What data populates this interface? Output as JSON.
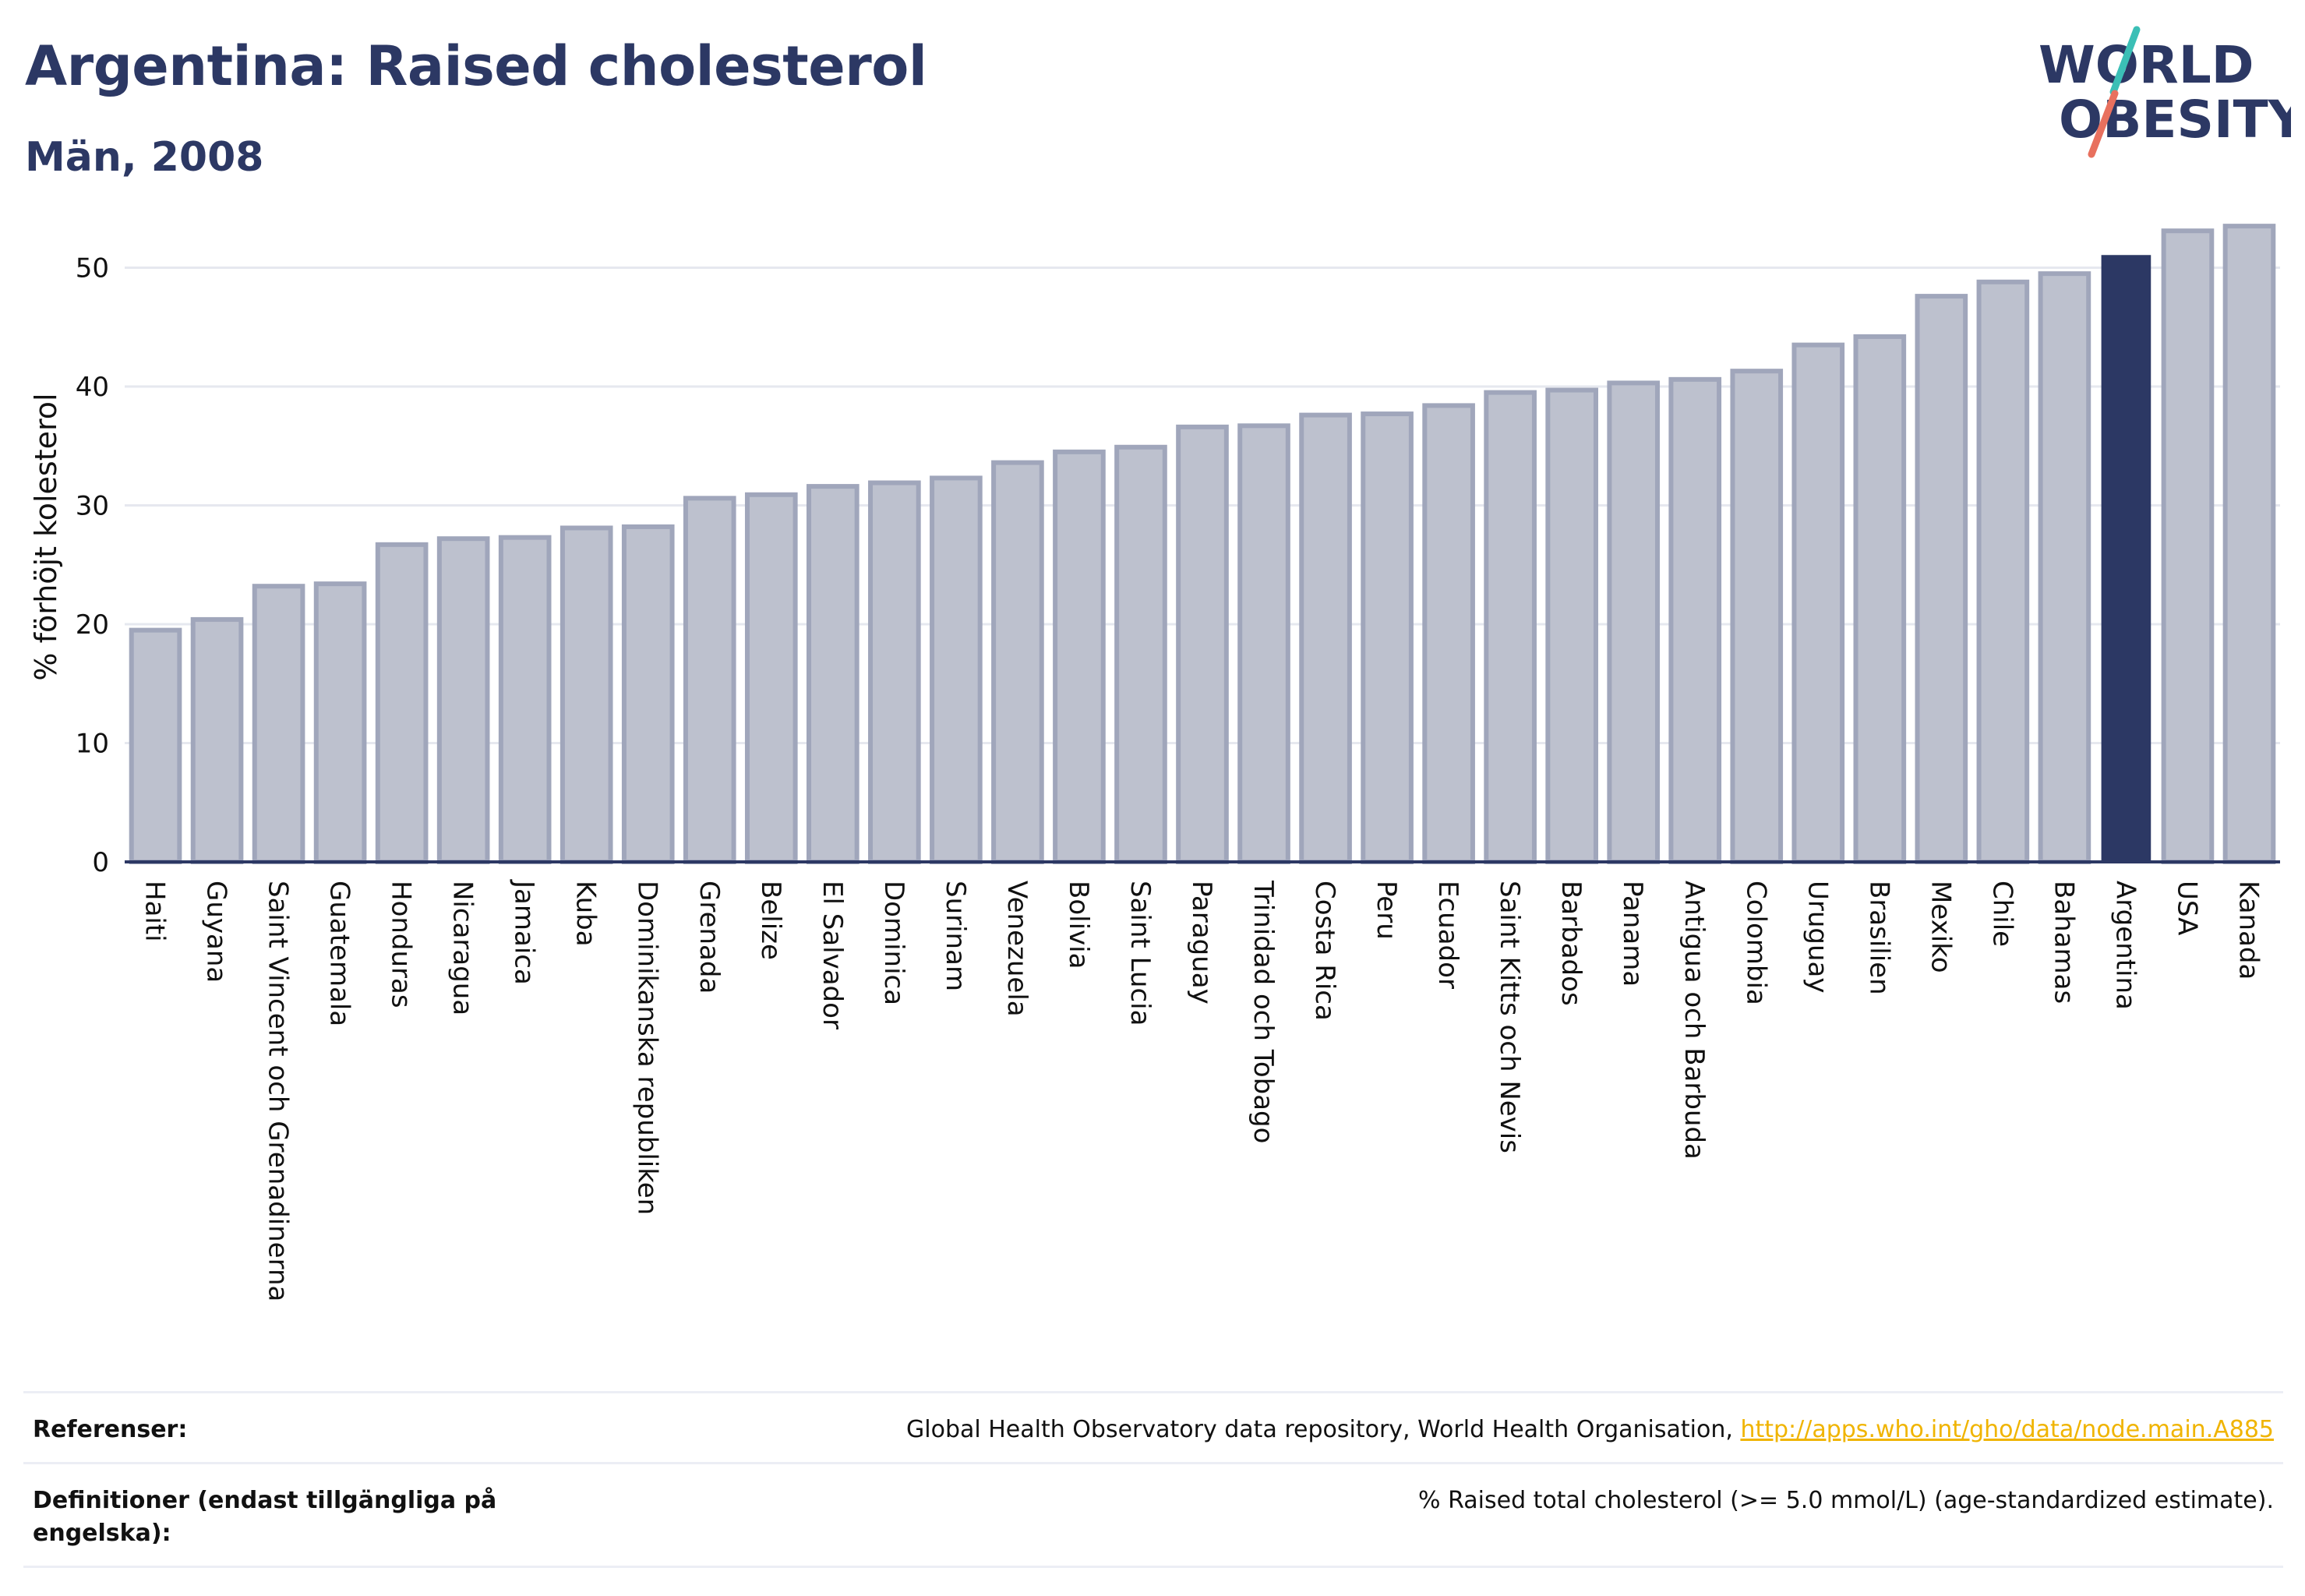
{
  "header": {
    "title": "Argentina: Raised cholesterol",
    "subtitle": "Män, 2008"
  },
  "logo": {
    "line1": "WORLD",
    "line2": "OBESITY",
    "color_text": "#2c3864",
    "color_teal": "#3bbfb6",
    "color_coral": "#e8705e"
  },
  "colors": {
    "bar_fill": "#bdc1ce",
    "bar_stroke": "#a0a6bb",
    "highlight": "#2c3864",
    "grid": "#e6e8ef",
    "axis": "#2c3864"
  },
  "chart_data": {
    "type": "bar",
    "title": "Argentina: Raised cholesterol",
    "subtitle": "Män, 2008",
    "xlabel": "",
    "ylabel": "% förhöjt kolesterol",
    "ylim": [
      0,
      56
    ],
    "yticks": [
      0,
      10,
      20,
      30,
      40,
      50
    ],
    "grid": true,
    "highlight": "Argentina",
    "categories": [
      "Haiti",
      "Guyana",
      "Saint Vincent och Grenadinerna",
      "Guatemala",
      "Honduras",
      "Nicaragua",
      "Jamaica",
      "Kuba",
      "Dominikanska republiken",
      "Grenada",
      "Belize",
      "El Salvador",
      "Dominica",
      "Surinam",
      "Venezuela",
      "Bolivia",
      "Saint Lucia",
      "Paraguay",
      "Trinidad och Tobago",
      "Costa Rica",
      "Peru",
      "Ecuador",
      "Saint Kitts och Nevis",
      "Barbados",
      "Panama",
      "Antigua och Barbuda",
      "Colombia",
      "Uruguay",
      "Brasilien",
      "Mexiko",
      "Chile",
      "Bahamas",
      "Argentina",
      "USA",
      "Kanada"
    ],
    "values": [
      19.5,
      20.4,
      23.2,
      23.4,
      26.7,
      27.2,
      27.3,
      28.1,
      28.2,
      30.6,
      30.9,
      31.6,
      31.9,
      32.3,
      33.6,
      34.5,
      34.9,
      36.6,
      36.7,
      37.6,
      37.7,
      38.4,
      39.5,
      39.7,
      40.3,
      40.6,
      41.3,
      43.5,
      44.2,
      47.6,
      48.8,
      49.5,
      51.0,
      53.1,
      53.5
    ]
  },
  "footer": {
    "ref_label": "Referenser:",
    "ref_text": "Global Health Observatory data repository, World Health Organisation, ",
    "ref_link": "http://apps.who.int/gho/data/node.main.A885",
    "def_label": "Definitioner (endast tillgängliga på engelska):",
    "def_text": "% Raised total cholesterol (>= 5.0 mmol/L) (age-standardized estimate)."
  }
}
